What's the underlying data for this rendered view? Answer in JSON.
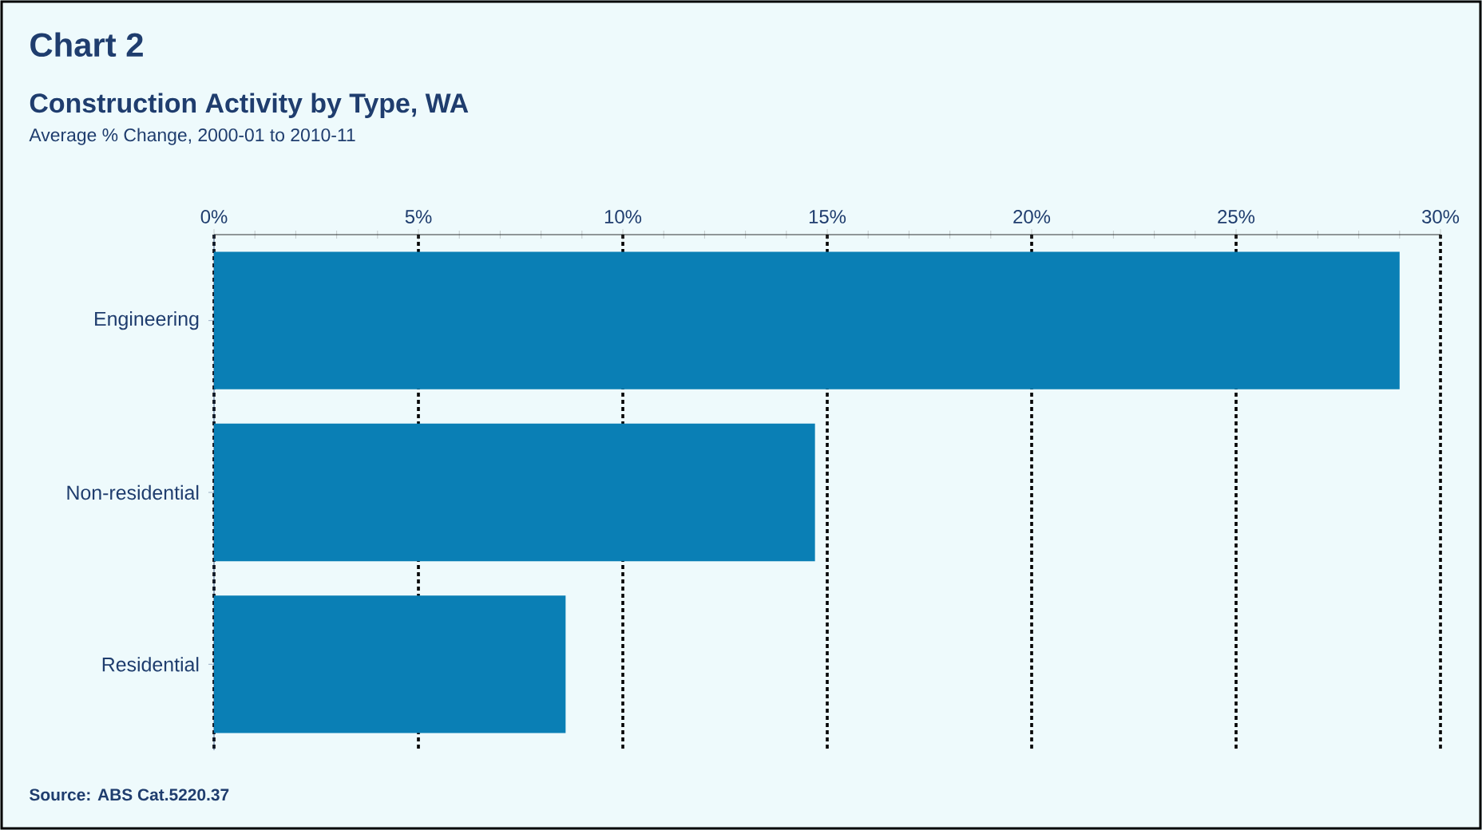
{
  "chart_data": {
    "type": "bar",
    "orientation": "horizontal",
    "title": "Chart 2",
    "subtitle": "Construction Activity by Type, WA",
    "annotations": [
      "Average % Change, 2000-01 to 2010-11",
      "Source: ABS Cat.5220.37"
    ],
    "categories": [
      "Engineering",
      "Non-residential",
      "Residential"
    ],
    "values": [
      29.0,
      14.7,
      8.6
    ],
    "color": "#0a7fb5",
    "xlim": [
      0,
      30
    ],
    "xticks": [
      {
        "value": 0,
        "label": "0%"
      },
      {
        "value": 5,
        "label": "5%"
      },
      {
        "value": 10,
        "label": "10%"
      },
      {
        "value": 15,
        "label": "15%"
      },
      {
        "value": 20,
        "label": "20%"
      },
      {
        "value": 25,
        "label": "25%"
      },
      {
        "value": 30,
        "label": "30%"
      }
    ],
    "grid": "x"
  }
}
